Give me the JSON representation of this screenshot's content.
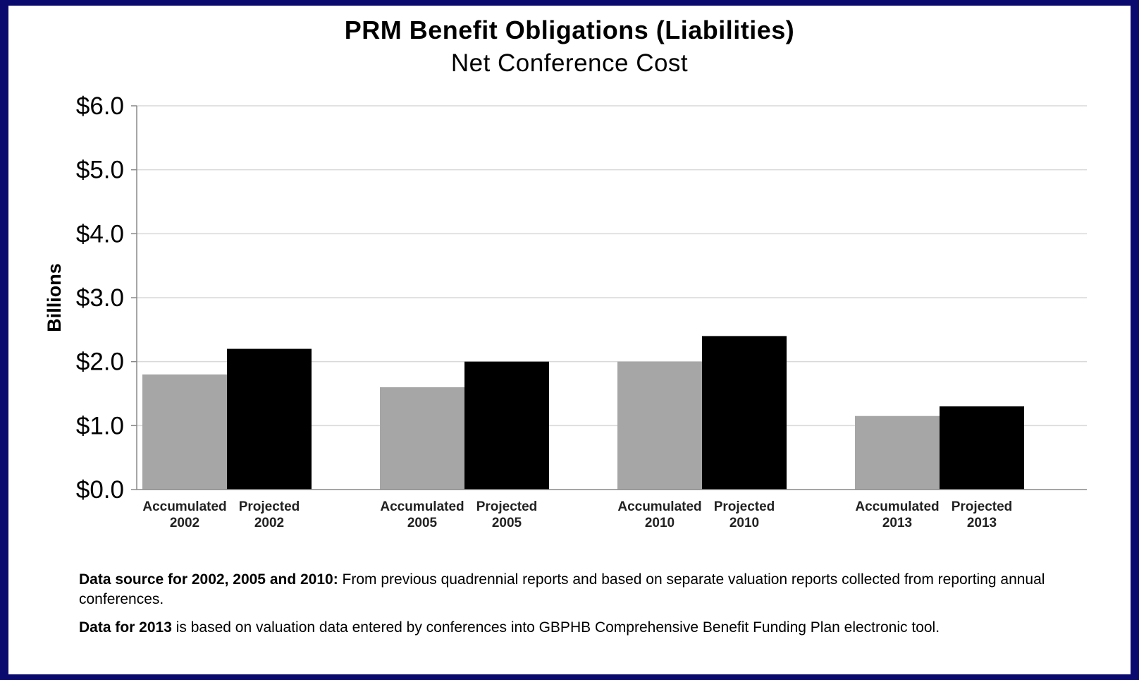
{
  "chart_data": {
    "type": "bar",
    "title": "PRM Benefit Obligations (Liabilities)",
    "subtitle": "Net Conference Cost",
    "ylabel": "Billions",
    "ylim": [
      0,
      6
    ],
    "yticks": [
      "$0.0",
      "$1.0",
      "$2.0",
      "$3.0",
      "$4.0",
      "$5.0",
      "$6.0"
    ],
    "ytick_values": [
      0,
      1,
      2,
      3,
      4,
      5,
      6
    ],
    "grid": true,
    "categories": [
      [
        "Accumulated",
        "2002"
      ],
      [
        "Projected",
        "2002"
      ],
      [
        "Accumulated",
        "2005"
      ],
      [
        "Projected",
        "2005"
      ],
      [
        "Accumulated",
        "2010"
      ],
      [
        "Projected",
        "2010"
      ],
      [
        "Accumulated",
        "2013"
      ],
      [
        "Projected",
        "2013"
      ]
    ],
    "values": [
      1.8,
      2.2,
      1.6,
      2.0,
      2.0,
      2.4,
      1.15,
      1.3
    ],
    "bar_colors": [
      "#a6a6a6",
      "#000000",
      "#a6a6a6",
      "#000000",
      "#a6a6a6",
      "#000000",
      "#a6a6a6",
      "#000000"
    ]
  },
  "notes": {
    "note1_bold": "Data source for 2002, 2005 and 2010:",
    "note1_text": " From previous quadrennial reports and based on separate valuation reports collected from reporting annual conferences.",
    "note2_bold": "Data for 2013",
    "note2_text": " is based on valuation data entered by conferences into GBPHB Comprehensive Benefit Funding Plan electronic tool."
  },
  "colors": {
    "border": "#0a0a6e",
    "accumulated": "#a6a6a6",
    "projected": "#000000",
    "gridline": "#d9d9d9"
  }
}
